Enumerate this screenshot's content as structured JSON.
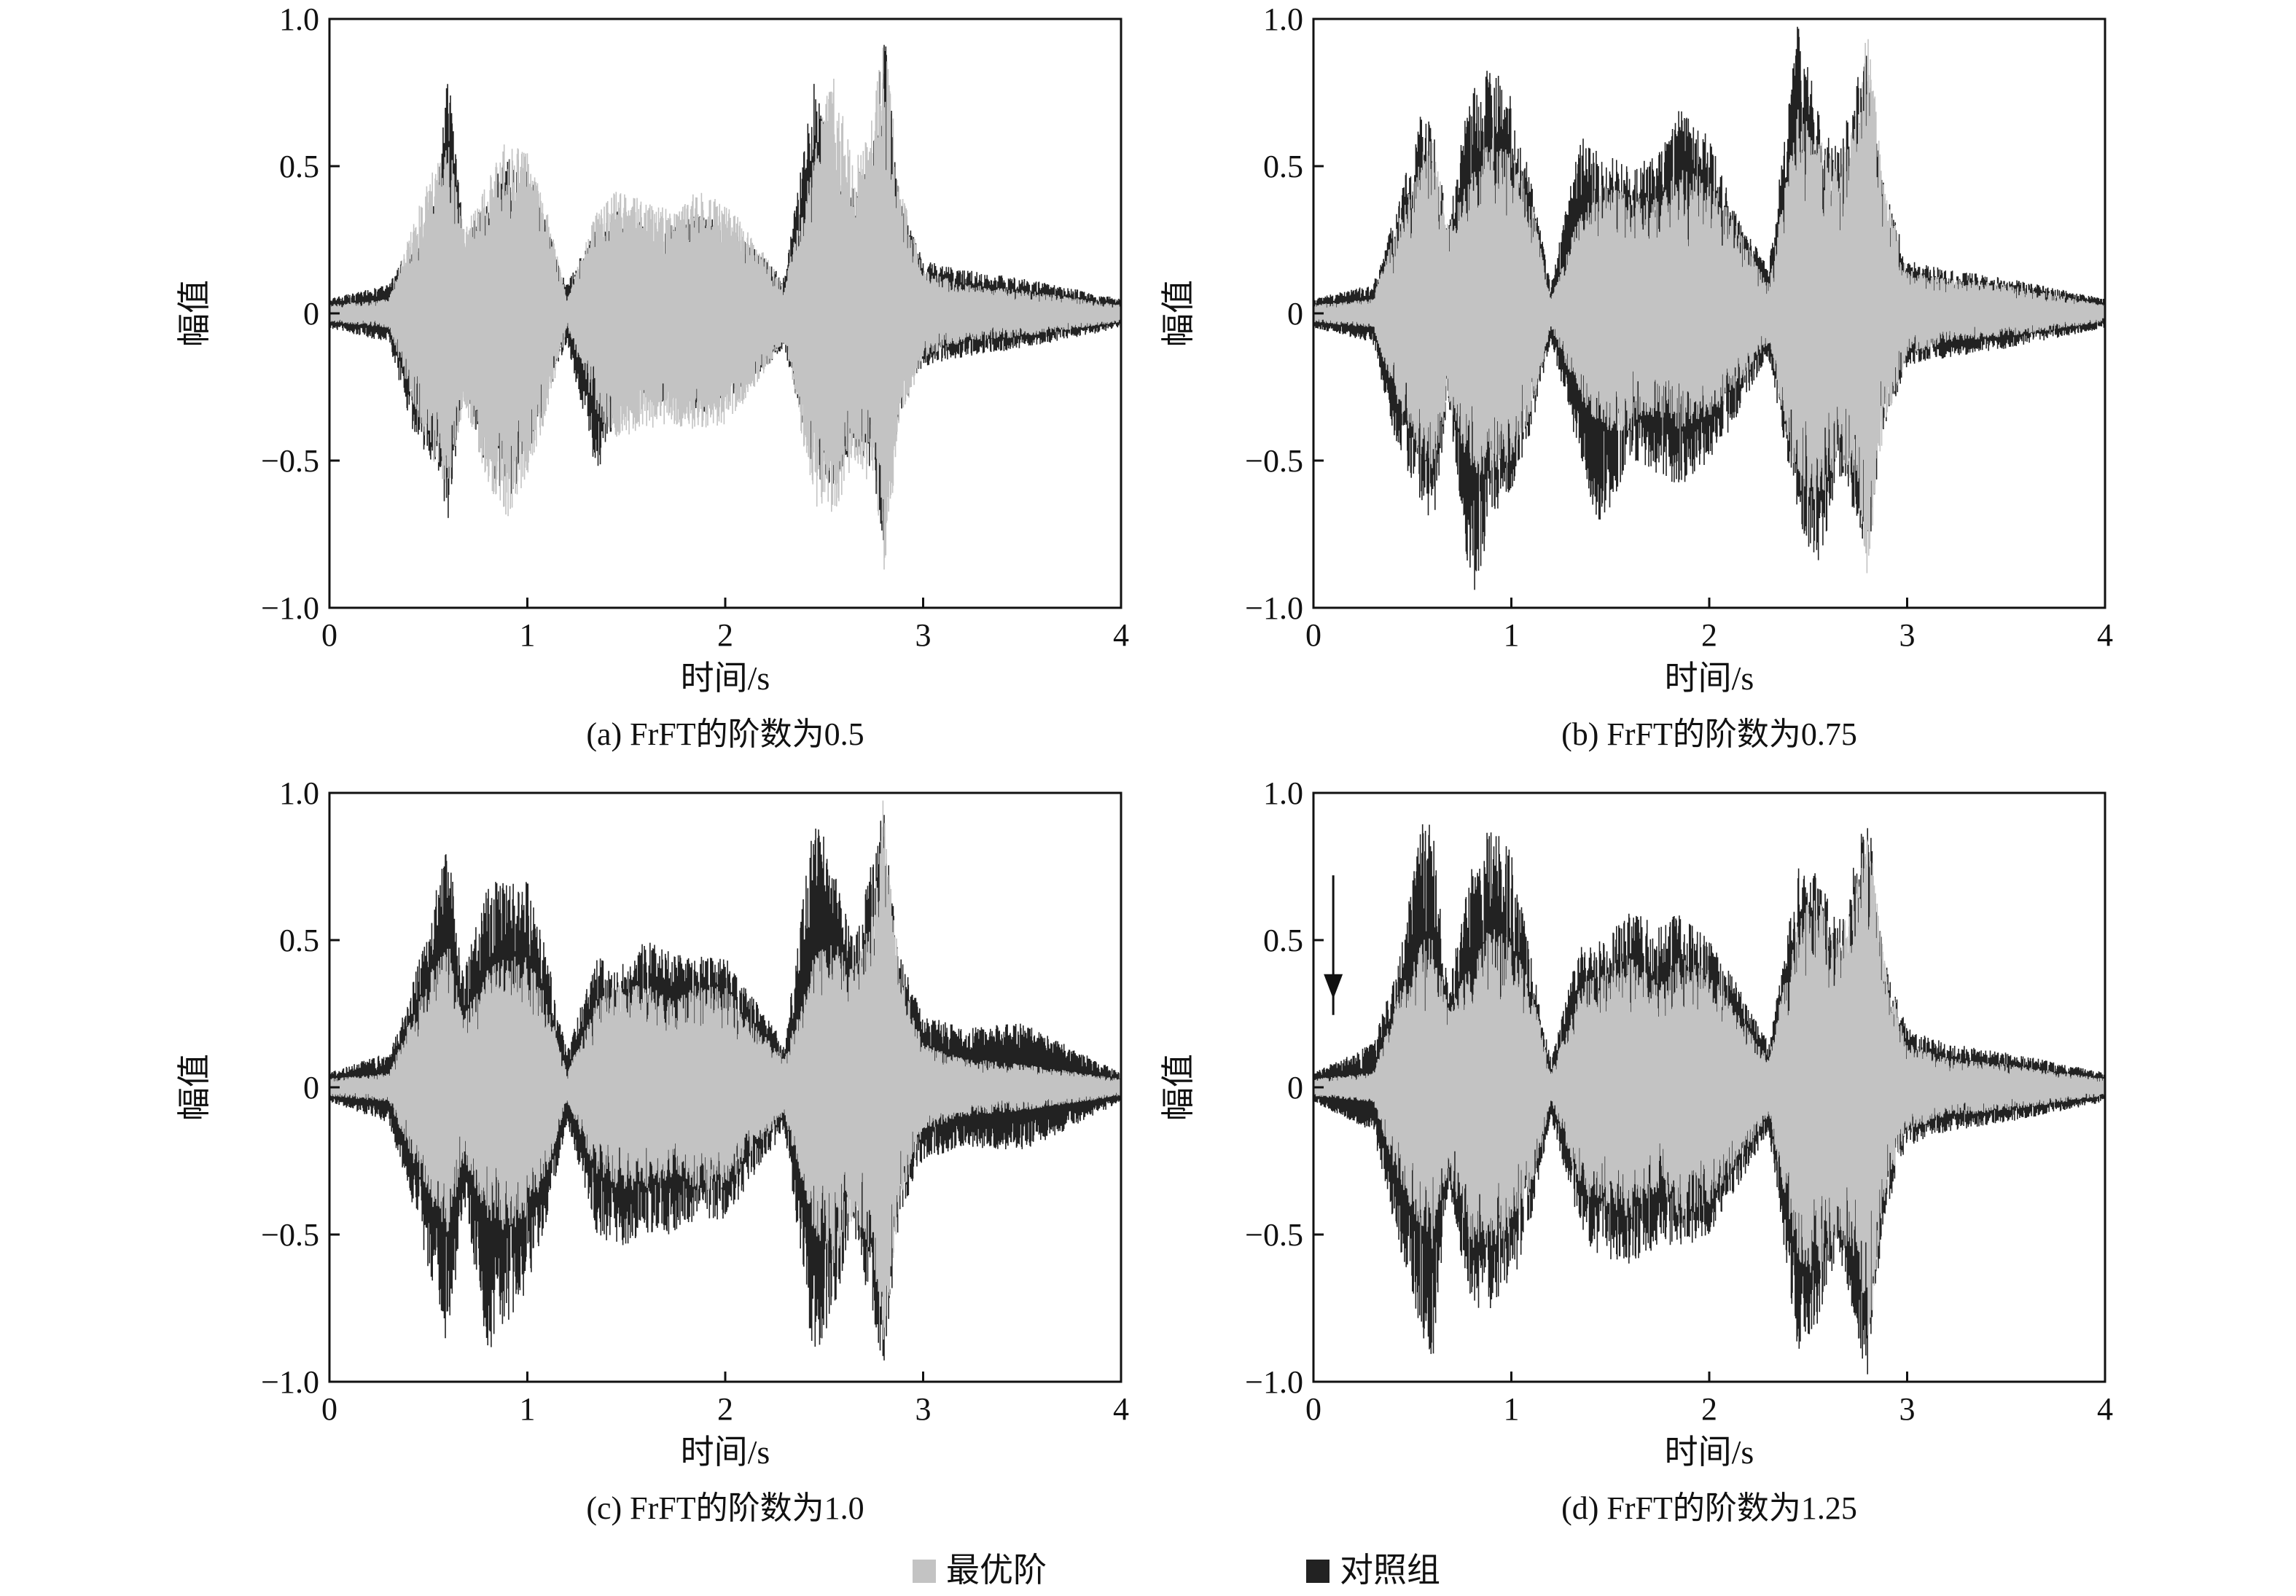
{
  "figure": {
    "colors": {
      "best_order": "#c3c3c3",
      "control": "#222222",
      "axis": "#111111"
    },
    "legend": [
      {
        "name": "最优阶",
        "color": "#c3c3c3"
      },
      {
        "name": "对照组",
        "color": "#222222"
      }
    ]
  },
  "chart_data": [
    {
      "type": "line",
      "caption": "(a) FrFT的阶数为0.5",
      "xlabel": "时间/s",
      "ylabel": "幅值",
      "xlim": [
        0,
        4
      ],
      "ylim": [
        -1.0,
        1.0
      ],
      "xticks": [
        "0",
        "1",
        "2",
        "3",
        "4"
      ],
      "yticks": [
        "1.0",
        "0.5",
        "0",
        "−0.5",
        "−1.0"
      ],
      "grid": false,
      "legend_position": "bottom-center (shared)",
      "series": [
        {
          "name": "最优阶",
          "envelope": {
            "t": [
              0,
              0.3,
              0.42,
              0.55,
              0.6,
              0.68,
              0.8,
              0.9,
              1.0,
              1.1,
              1.2,
              1.35,
              1.45,
              1.6,
              1.75,
              1.85,
              2.0,
              2.1,
              2.3,
              2.45,
              2.55,
              2.65,
              2.75,
              2.8,
              2.88,
              3.0,
              3.2,
              3.5,
              4.0
            ],
            "max": [
              0.03,
              0.05,
              0.3,
              0.55,
              0.6,
              0.3,
              0.45,
              0.6,
              0.55,
              0.35,
              0.05,
              0.35,
              0.42,
              0.38,
              0.35,
              0.42,
              0.38,
              0.3,
              0.1,
              0.55,
              0.85,
              0.5,
              0.7,
              1.0,
              0.45,
              0.15,
              0.1,
              0.08,
              0.03
            ],
            "min": [
              -0.03,
              -0.05,
              -0.3,
              -0.55,
              -0.6,
              -0.3,
              -0.6,
              -0.7,
              -0.55,
              -0.35,
              -0.05,
              -0.35,
              -0.42,
              -0.4,
              -0.38,
              -0.4,
              -0.38,
              -0.3,
              -0.1,
              -0.65,
              -0.7,
              -0.5,
              -0.6,
              -0.9,
              -0.4,
              -0.15,
              -0.1,
              -0.08,
              -0.03
            ]
          }
        },
        {
          "name": "对照组",
          "envelope": {
            "t": [
              0,
              0.3,
              0.42,
              0.55,
              0.6,
              0.68,
              0.8,
              0.9,
              1.0,
              1.1,
              1.2,
              1.35,
              1.45,
              1.6,
              1.75,
              1.85,
              2.0,
              2.1,
              2.3,
              2.45,
              2.55,
              2.65,
              2.75,
              2.8,
              2.88,
              3.0,
              3.2,
              3.5,
              4.0
            ],
            "max": [
              0.05,
              0.1,
              0.25,
              0.45,
              0.85,
              0.25,
              0.4,
              0.55,
              0.5,
              0.3,
              0.1,
              0.3,
              0.35,
              0.3,
              0.3,
              0.35,
              0.3,
              0.25,
              0.12,
              0.8,
              0.55,
              0.45,
              0.6,
              1.0,
              0.4,
              0.18,
              0.15,
              0.12,
              0.05
            ],
            "min": [
              -0.05,
              -0.1,
              -0.4,
              -0.55,
              -0.7,
              -0.25,
              -0.55,
              -0.65,
              -0.5,
              -0.3,
              -0.1,
              -0.55,
              -0.35,
              -0.3,
              -0.3,
              -0.35,
              -0.3,
              -0.25,
              -0.12,
              -0.55,
              -0.6,
              -0.45,
              -0.55,
              -0.8,
              -0.35,
              -0.18,
              -0.15,
              -0.12,
              -0.05
            ]
          }
        }
      ]
    },
    {
      "type": "line",
      "caption": "(b) FrFT的阶数为0.75",
      "xlabel": "时间/s",
      "ylabel": "幅值",
      "xlim": [
        0,
        4
      ],
      "ylim": [
        -1.0,
        1.0
      ],
      "xticks": [
        "0",
        "1",
        "2",
        "3",
        "4"
      ],
      "yticks": [
        "1.0",
        "0.5",
        "0",
        "−0.5",
        "−1.0"
      ],
      "grid": false,
      "legend_position": "bottom-center (shared)",
      "series": [
        {
          "name": "最优阶",
          "envelope": {
            "t": [
              0,
              0.3,
              0.42,
              0.55,
              0.6,
              0.68,
              0.8,
              0.9,
              1.0,
              1.1,
              1.2,
              1.35,
              1.45,
              1.6,
              1.75,
              1.85,
              2.0,
              2.1,
              2.3,
              2.45,
              2.55,
              2.65,
              2.75,
              2.8,
              2.88,
              3.0,
              3.2,
              3.5,
              4.0
            ],
            "max": [
              0.03,
              0.05,
              0.3,
              0.55,
              0.6,
              0.3,
              0.5,
              0.6,
              0.55,
              0.4,
              0.05,
              0.35,
              0.45,
              0.4,
              0.4,
              0.5,
              0.45,
              0.35,
              0.1,
              0.7,
              0.6,
              0.5,
              0.7,
              1.0,
              0.45,
              0.15,
              0.12,
              0.1,
              0.03
            ],
            "min": [
              -0.03,
              -0.05,
              -0.3,
              -0.5,
              -0.55,
              -0.3,
              -0.55,
              -0.55,
              -0.5,
              -0.35,
              -0.05,
              -0.3,
              -0.4,
              -0.4,
              -0.35,
              -0.4,
              -0.35,
              -0.3,
              -0.1,
              -0.6,
              -0.65,
              -0.5,
              -0.6,
              -0.9,
              -0.4,
              -0.15,
              -0.1,
              -0.08,
              -0.03
            ]
          }
        },
        {
          "name": "对照组",
          "envelope": {
            "t": [
              0,
              0.3,
              0.42,
              0.55,
              0.6,
              0.68,
              0.8,
              0.9,
              1.0,
              1.1,
              1.2,
              1.35,
              1.45,
              1.6,
              1.75,
              1.85,
              2.0,
              2.1,
              2.3,
              2.45,
              2.55,
              2.65,
              2.75,
              2.8,
              2.88,
              3.0,
              3.2,
              3.5,
              4.0
            ],
            "max": [
              0.05,
              0.1,
              0.35,
              0.7,
              0.65,
              0.3,
              0.8,
              0.85,
              0.75,
              0.45,
              0.1,
              0.6,
              0.55,
              0.5,
              0.55,
              0.7,
              0.6,
              0.4,
              0.15,
              1.0,
              0.7,
              0.55,
              0.8,
              0.9,
              0.45,
              0.18,
              0.15,
              0.12,
              0.05
            ],
            "min": [
              -0.05,
              -0.1,
              -0.45,
              -0.65,
              -0.75,
              -0.3,
              -1.0,
              -0.7,
              -0.6,
              -0.4,
              -0.1,
              -0.5,
              -0.75,
              -0.5,
              -0.55,
              -0.6,
              -0.5,
              -0.4,
              -0.15,
              -0.7,
              -0.92,
              -0.55,
              -0.7,
              -0.85,
              -0.4,
              -0.18,
              -0.15,
              -0.12,
              -0.05
            ]
          }
        }
      ]
    },
    {
      "type": "line",
      "caption": "(c) FrFT的阶数为1.0",
      "xlabel": "时间/s",
      "ylabel": "幅值",
      "xlim": [
        0,
        4
      ],
      "ylim": [
        -1.0,
        1.0
      ],
      "xticks": [
        "0",
        "1",
        "2",
        "3",
        "4"
      ],
      "yticks": [
        "1.0",
        "0.5",
        "0",
        "−0.5",
        "−1.0"
      ],
      "grid": false,
      "legend_position": "bottom-center (shared)",
      "series": [
        {
          "name": "最优阶",
          "envelope": {
            "t": [
              0,
              0.3,
              0.42,
              0.55,
              0.6,
              0.68,
              0.8,
              0.9,
              1.0,
              1.1,
              1.2,
              1.35,
              1.45,
              1.6,
              1.75,
              1.85,
              2.0,
              2.1,
              2.3,
              2.45,
              2.55,
              2.65,
              2.75,
              2.8,
              2.88,
              3.0,
              3.2,
              3.5,
              4.0
            ],
            "max": [
              0.03,
              0.05,
              0.25,
              0.45,
              0.5,
              0.25,
              0.4,
              0.45,
              0.45,
              0.3,
              0.05,
              0.3,
              0.35,
              0.35,
              0.3,
              0.35,
              0.35,
              0.25,
              0.1,
              0.45,
              0.5,
              0.4,
              0.6,
              1.0,
              0.4,
              0.15,
              0.1,
              0.08,
              0.03
            ],
            "min": [
              -0.03,
              -0.05,
              -0.25,
              -0.45,
              -0.5,
              -0.25,
              -0.45,
              -0.5,
              -0.45,
              -0.3,
              -0.05,
              -0.3,
              -0.35,
              -0.35,
              -0.3,
              -0.35,
              -0.35,
              -0.25,
              -0.1,
              -0.5,
              -0.6,
              -0.45,
              -0.6,
              -0.9,
              -0.4,
              -0.15,
              -0.1,
              -0.08,
              -0.03
            ]
          }
        },
        {
          "name": "对照组",
          "envelope": {
            "t": [
              0,
              0.3,
              0.42,
              0.55,
              0.6,
              0.68,
              0.8,
              0.9,
              1.0,
              1.1,
              1.2,
              1.35,
              1.45,
              1.6,
              1.75,
              1.85,
              2.0,
              2.1,
              2.3,
              2.45,
              2.55,
              2.65,
              2.75,
              2.8,
              2.88,
              3.0,
              3.2,
              3.5,
              4.0
            ],
            "max": [
              0.05,
              0.12,
              0.35,
              0.7,
              0.85,
              0.4,
              0.7,
              0.7,
              0.7,
              0.45,
              0.12,
              0.45,
              0.4,
              0.5,
              0.45,
              0.45,
              0.45,
              0.35,
              0.15,
              0.95,
              0.75,
              0.5,
              0.8,
              0.95,
              0.45,
              0.25,
              0.2,
              0.22,
              0.05
            ],
            "min": [
              -0.05,
              -0.12,
              -0.4,
              -0.75,
              -0.9,
              -0.4,
              -0.9,
              -0.8,
              -0.7,
              -0.45,
              -0.12,
              -0.5,
              -0.55,
              -0.5,
              -0.5,
              -0.45,
              -0.45,
              -0.35,
              -0.15,
              -0.95,
              -0.75,
              -0.5,
              -0.8,
              -0.95,
              -0.45,
              -0.25,
              -0.2,
              -0.22,
              -0.05
            ]
          }
        }
      ]
    },
    {
      "type": "line",
      "caption": "(d) FrFT的阶数为1.25",
      "xlabel": "时间/s",
      "ylabel": "幅值",
      "xlim": [
        0,
        4
      ],
      "ylim": [
        -1.0,
        1.0
      ],
      "xticks": [
        "0",
        "1",
        "2",
        "3",
        "4"
      ],
      "yticks": [
        "1.0",
        "0.5",
        "0",
        "−0.5",
        "−1.0"
      ],
      "grid": false,
      "legend_position": "bottom-center (shared)",
      "annotation": {
        "type": "arrow",
        "x": 0.1,
        "y_from": 0.72,
        "y_to": 0.3
      },
      "series": [
        {
          "name": "最优阶",
          "envelope": {
            "t": [
              0,
              0.3,
              0.42,
              0.55,
              0.6,
              0.68,
              0.8,
              0.9,
              1.0,
              1.1,
              1.2,
              1.35,
              1.45,
              1.6,
              1.75,
              1.85,
              2.0,
              2.1,
              2.3,
              2.45,
              2.55,
              2.65,
              2.75,
              2.8,
              2.88,
              3.0,
              3.2,
              3.5,
              4.0
            ],
            "max": [
              0.03,
              0.05,
              0.3,
              0.5,
              0.55,
              0.3,
              0.45,
              0.55,
              0.5,
              0.35,
              0.05,
              0.35,
              0.4,
              0.45,
              0.35,
              0.45,
              0.4,
              0.3,
              0.1,
              0.6,
              0.65,
              0.5,
              0.7,
              1.0,
              0.45,
              0.15,
              0.1,
              0.08,
              0.03
            ],
            "min": [
              -0.03,
              -0.05,
              -0.3,
              -0.5,
              -0.55,
              -0.3,
              -0.55,
              -0.55,
              -0.5,
              -0.35,
              -0.05,
              -0.35,
              -0.4,
              -0.45,
              -0.35,
              -0.45,
              -0.4,
              -0.3,
              -0.1,
              -0.6,
              -0.65,
              -0.5,
              -0.6,
              -0.9,
              -0.4,
              -0.15,
              -0.1,
              -0.08,
              -0.03
            ]
          }
        },
        {
          "name": "对照组",
          "envelope": {
            "t": [
              0,
              0.3,
              0.42,
              0.55,
              0.6,
              0.68,
              0.8,
              0.9,
              1.0,
              1.1,
              1.2,
              1.35,
              1.45,
              1.6,
              1.75,
              1.85,
              2.0,
              2.1,
              2.3,
              2.45,
              2.55,
              2.65,
              2.75,
              2.8,
              2.88,
              3.0,
              3.2,
              3.5,
              4.0
            ],
            "max": [
              0.05,
              0.15,
              0.4,
              0.9,
              0.9,
              0.35,
              0.75,
              0.9,
              0.8,
              0.45,
              0.1,
              0.5,
              0.5,
              0.6,
              0.55,
              0.6,
              0.5,
              0.4,
              0.15,
              0.75,
              0.75,
              0.55,
              0.8,
              1.0,
              0.45,
              0.2,
              0.15,
              0.12,
              0.05
            ],
            "min": [
              -0.05,
              -0.15,
              -0.5,
              -0.85,
              -1.0,
              -0.35,
              -0.75,
              -0.75,
              -0.7,
              -0.45,
              -0.1,
              -0.5,
              -0.6,
              -0.6,
              -0.55,
              -0.55,
              -0.5,
              -0.4,
              -0.15,
              -0.9,
              -0.8,
              -0.55,
              -0.85,
              -1.0,
              -0.45,
              -0.2,
              -0.15,
              -0.12,
              -0.05
            ]
          }
        }
      ]
    }
  ]
}
